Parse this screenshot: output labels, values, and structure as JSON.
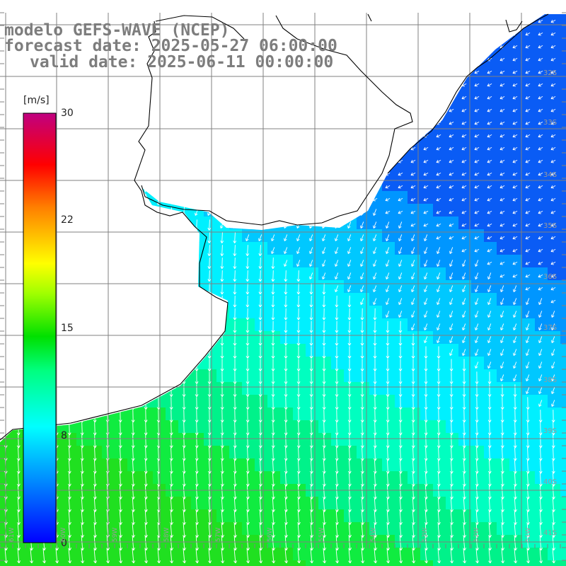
{
  "header": {
    "model": "modelo GEFS-WAVE (NCEP)",
    "forecast": "forecast date: 2025-05-27 06:00:00",
    "valid": "valid date: 2025-06-11 00:00:00"
  },
  "colorbar": {
    "unit": "[m/s]",
    "ticks": [
      "30",
      "22",
      "15",
      "8",
      "0"
    ],
    "tick_values": [
      30,
      22,
      15,
      8,
      0
    ],
    "range": [
      0,
      30
    ],
    "stops": [
      "#0000ff",
      "#00a0ff",
      "#00ffff",
      "#00ff00",
      "#a0ff00",
      "#ffff00",
      "#ff8000",
      "#ff0000",
      "#c00080"
    ]
  },
  "map": {
    "lat_labels": [
      "32S",
      "33S",
      "34S",
      "35S",
      "36S",
      "37S",
      "38S",
      "39S",
      "40S",
      "41S"
    ],
    "lon_labels": [
      "61W",
      "60W",
      "59W",
      "58W",
      "57W",
      "56W",
      "55W",
      "54W",
      "53W",
      "52W",
      "51W"
    ],
    "land_color": "#ffffff",
    "grid_color": "#7f7f7f",
    "coast_color": "#000000",
    "arrow_color": "#ffffff"
  }
}
